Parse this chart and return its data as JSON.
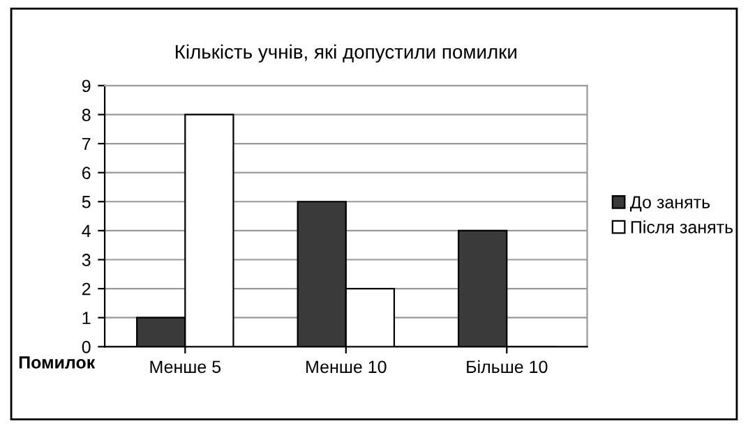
{
  "chart_data": {
    "type": "bar",
    "title": "Кількість учнів, які допустили помилки",
    "xlabel": "Помилок",
    "categories": [
      "Менше 5",
      "Менше 10",
      "Більше 10"
    ],
    "series": [
      {
        "name": "До занять",
        "color": "#3a3a3a",
        "values": [
          1,
          5,
          4
        ]
      },
      {
        "name": "Після занять",
        "color": "#ffffff",
        "values": [
          8,
          2,
          0
        ]
      }
    ],
    "ylim": [
      0,
      9
    ],
    "yticks": [
      0,
      1,
      2,
      3,
      4,
      5,
      6,
      7,
      8,
      9
    ],
    "grid": "y",
    "legend": "right"
  }
}
